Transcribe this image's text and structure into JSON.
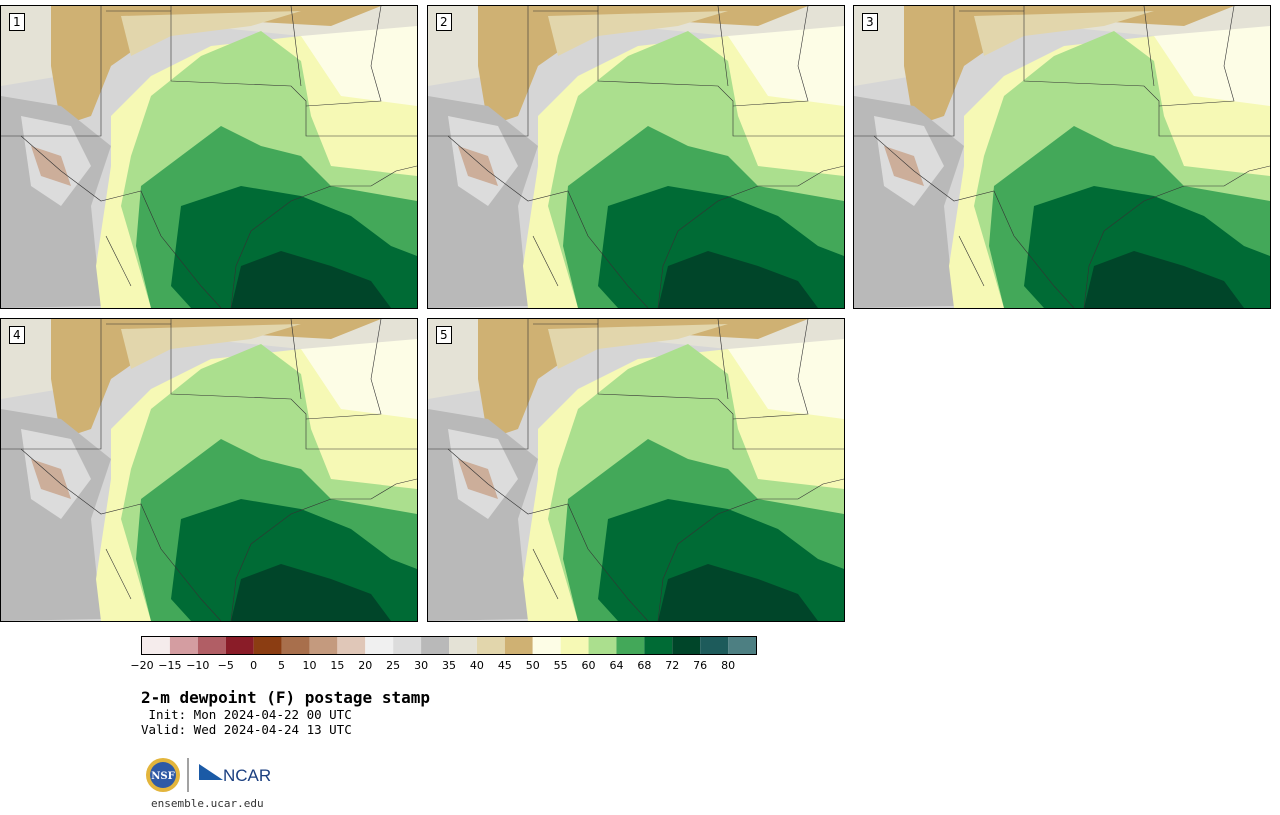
{
  "title": "2-m dewpoint (F) postage stamp",
  "init_text": " Init: Mon 2024-04-22 00 UTC",
  "valid_text": "Valid: Wed 2024-04-24 13 UTC",
  "logo": {
    "nsf_text": "NSF",
    "ncar_text": "NCAR"
  },
  "url": "ensemble.ucar.edu",
  "panels": [
    {
      "label": "1"
    },
    {
      "label": "2"
    },
    {
      "label": "3"
    },
    {
      "label": "4"
    },
    {
      "label": "5"
    }
  ],
  "colorbar": {
    "colors": [
      "#f5ecec",
      "#d49da1",
      "#b15e65",
      "#8a1c28",
      "#8b3d12",
      "#a86f4c",
      "#c49a7e",
      "#e0c7b8",
      "#f0f0f0",
      "#dcdcdc",
      "#b9b9b9",
      "#e4e2d6",
      "#e2d6ac",
      "#cfb173",
      "#fdfde6",
      "#f6f9b5",
      "#abdf8e",
      "#43a859",
      "#006b35",
      "#004529",
      "#1d5b5b",
      "#4d7f82"
    ],
    "ticks": [
      "−20",
      "−15",
      "−10",
      "−5",
      "0",
      "5",
      "10",
      "15",
      "20",
      "25",
      "30",
      "35",
      "40",
      "45",
      "50",
      "55",
      "60",
      "64",
      "68",
      "72",
      "76",
      "80"
    ]
  }
}
